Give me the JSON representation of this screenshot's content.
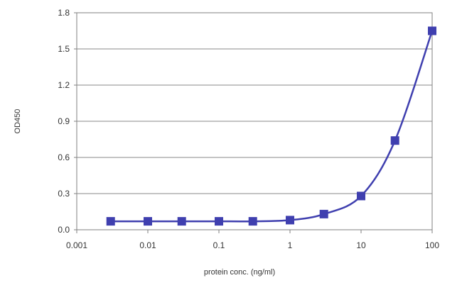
{
  "chart_data": {
    "type": "line",
    "title": "",
    "xlabel": "protein conc. (ng/ml)",
    "ylabel": "OD450",
    "x_scale": "log",
    "xlim": [
      0.001,
      100
    ],
    "ylim": [
      0.0,
      1.8
    ],
    "x_ticks": [
      "0.001",
      "0.01",
      "0.1",
      "1",
      "10",
      "100"
    ],
    "y_ticks": [
      "0.0",
      "0.3",
      "0.6",
      "0.9",
      "1.2",
      "1.5",
      "1.8"
    ],
    "grid": "horizontal",
    "legend": "none",
    "series": [
      {
        "x": [
          0.003,
          0.01,
          0.03,
          0.1,
          0.3,
          1,
          3,
          10,
          30,
          100
        ],
        "y": [
          0.07,
          0.07,
          0.07,
          0.07,
          0.07,
          0.08,
          0.13,
          0.28,
          0.74,
          1.65
        ],
        "color": "#3f3faf"
      }
    ]
  }
}
